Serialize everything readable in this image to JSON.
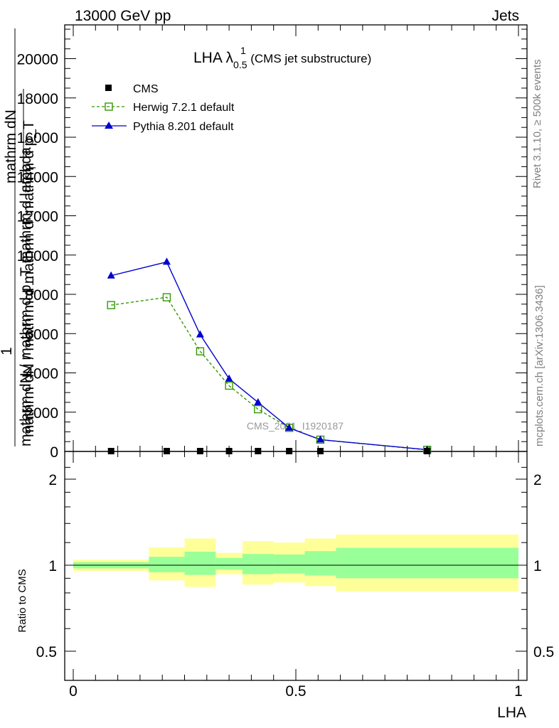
{
  "header": {
    "energy": "13000 GeV pp",
    "process": "Jets"
  },
  "plot_title": {
    "main": "LHA λ",
    "sup": "1",
    "sub": "0.5",
    "suffix": " (CMS jet substructure)"
  },
  "side_labels": {
    "rivet": "Rivet 3.1.10, ≥ 500k events",
    "mcplots": "mcplots.cern.ch [arXiv:1306.3436]"
  },
  "analysis_id": "CMS_2021_I1920187",
  "y_axis_title": {
    "numerator_one": "1",
    "frac_top": "mathrm dN",
    "frac_bottom": "mathrm d p_T",
    "frac_top2": "mathrm dN / mathrm d p_T  mathrm d lambda",
    "main": "mathrm dN / mathrm d mathrm d",
    "T": "T"
  },
  "ratio_ylabel": "Ratio to CMS",
  "xlabel": "LHA",
  "legend": {
    "cms": "CMS",
    "herwig": "Herwig 7.2.1 default",
    "pythia": "Pythia 8.201 default"
  },
  "colors": {
    "herwig": "#339900",
    "pythia": "#0000cc",
    "band_yellow": "#ffff99",
    "band_green": "#99ff99"
  },
  "chart_data": [
    {
      "type": "line",
      "panel": "main",
      "ylim": [
        0,
        28000
      ],
      "xlim": [
        0,
        1
      ],
      "y_ticks": [
        0,
        2000,
        4000,
        6000,
        8000,
        10000,
        12000,
        14000,
        16000,
        18000,
        20000
      ],
      "y_tick_labels": [
        "0",
        "2000",
        "4000",
        "6000",
        "8000",
        "10000",
        "12000",
        "14000",
        "16000",
        "18000",
        "20000"
      ],
      "series": [
        {
          "name": "CMS",
          "marker": "square",
          "x": [
            0.085,
            0.21,
            0.285,
            0.35,
            0.415,
            0.485,
            0.555,
            0.795
          ],
          "values": [
            0,
            0,
            0,
            0,
            0,
            0,
            0,
            0
          ]
        },
        {
          "name": "Herwig 7.2.1 default",
          "marker": "open-square",
          "x": [
            0.085,
            0.21,
            0.285,
            0.35,
            0.415,
            0.485,
            0.555,
            0.795
          ],
          "values": [
            7450,
            7850,
            5100,
            3350,
            2150,
            1200,
            600,
            80
          ]
        },
        {
          "name": "Pythia 8.201 default",
          "marker": "triangle",
          "x": [
            0.085,
            0.21,
            0.285,
            0.35,
            0.415,
            0.485,
            0.555,
            0.795
          ],
          "values": [
            8950,
            9650,
            5950,
            3700,
            2500,
            1200,
            600,
            90
          ]
        }
      ]
    },
    {
      "type": "area",
      "panel": "ratio",
      "ylim": [
        0.4,
        2.4
      ],
      "y_ticks": [
        0.5,
        1,
        2
      ],
      "y_tick_labels": [
        "0.5",
        "1",
        "2"
      ],
      "x_ticks": [
        0,
        0.5,
        1
      ],
      "x_tick_labels": [
        "0",
        "0.5",
        "1"
      ],
      "bins": [
        {
          "x0": 0.0,
          "x1": 0.17,
          "yellow": [
            0.955,
            1.045
          ],
          "green": [
            0.975,
            1.025
          ]
        },
        {
          "x0": 0.17,
          "x1": 0.25,
          "yellow": [
            0.885,
            1.155
          ],
          "green": [
            0.945,
            1.07
          ]
        },
        {
          "x0": 0.25,
          "x1": 0.32,
          "yellow": [
            0.84,
            1.24
          ],
          "green": [
            0.925,
            1.115
          ]
        },
        {
          "x0": 0.32,
          "x1": 0.38,
          "yellow": [
            0.93,
            1.105
          ],
          "green": [
            0.965,
            1.06
          ]
        },
        {
          "x0": 0.38,
          "x1": 0.45,
          "yellow": [
            0.855,
            1.215
          ],
          "green": [
            0.93,
            1.095
          ]
        },
        {
          "x0": 0.45,
          "x1": 0.52,
          "yellow": [
            0.87,
            1.2
          ],
          "green": [
            0.935,
            1.09
          ]
        },
        {
          "x0": 0.52,
          "x1": 0.59,
          "yellow": [
            0.845,
            1.24
          ],
          "green": [
            0.92,
            1.12
          ]
        },
        {
          "x0": 0.59,
          "x1": 1.0,
          "yellow": [
            0.81,
            1.28
          ],
          "green": [
            0.9,
            1.15
          ]
        }
      ]
    }
  ]
}
